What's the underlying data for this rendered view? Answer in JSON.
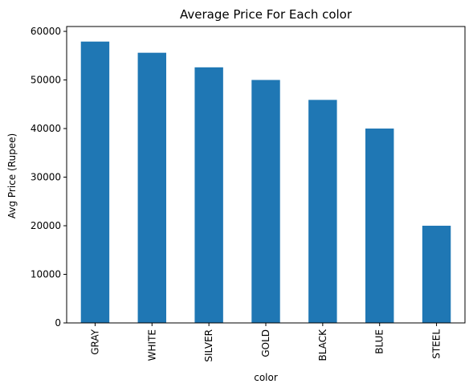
{
  "chart_data": {
    "type": "bar",
    "title": "Average Price For Each color",
    "xlabel": "color",
    "ylabel": "Avg Price (Rupee)",
    "categories": [
      "GRAY",
      "WHITE",
      "SILVER",
      "GOLD",
      "BLACK",
      "BLUE",
      "STEEL"
    ],
    "values": [
      57900,
      55600,
      52600,
      50000,
      45900,
      40000,
      20000
    ],
    "ylim": [
      0,
      61000
    ],
    "yticks": [
      0,
      10000,
      20000,
      30000,
      40000,
      50000,
      60000
    ],
    "ytick_labels": [
      "0",
      "10000",
      "20000",
      "30000",
      "40000",
      "50000",
      "60000"
    ],
    "bar_color": "#1f77b4",
    "grid": false,
    "legend": "none"
  }
}
